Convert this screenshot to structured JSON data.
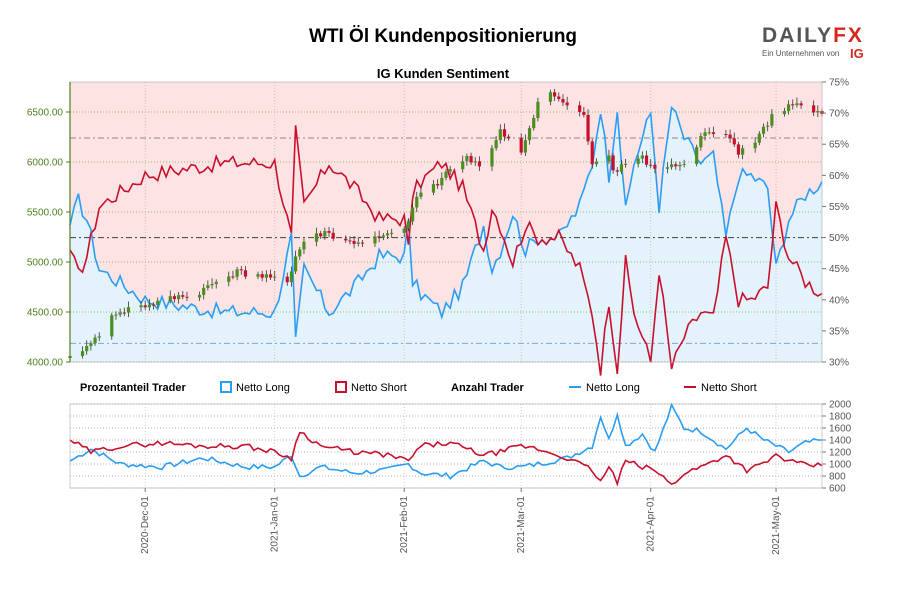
{
  "header": {
    "title": "WTI Öl Kundenpositionierung",
    "subtitle": "IG Kunden Sentiment"
  },
  "logo": {
    "brand_left": "DAILY",
    "brand_right": "FX",
    "tagline": "Ein Unternehmen von",
    "parent": "IG",
    "brand_color": "#d7271c"
  },
  "legend": {
    "percent_heading": "Prozentanteil Trader",
    "percent_long": "Netto Long",
    "percent_short": "Netto Short",
    "count_heading": "Anzahl Trader",
    "count_long": "Netto Long",
    "count_short": "Netto Short"
  },
  "colors": {
    "long": "#2a9df4",
    "short": "#c8102e",
    "candle_up": "#4a8f1f",
    "candle_down": "#c8102e",
    "short_zone": "#fde3e3",
    "long_zone": "#e3f2fb",
    "axis_price": "#4f7f1f"
  },
  "chart_data": [
    {
      "type": "candlestick",
      "title": "IG Kunden Sentiment",
      "x_tick_labels": [
        "2020-Dec-01",
        "2021-Jan-01",
        "2021-Feb-01",
        "2021-Mar-01",
        "2021-Apr-01",
        "2021-May-01"
      ],
      "x_range": [
        "2020-11-13",
        "2021-05-12"
      ],
      "price_axis": {
        "side": "left",
        "ylim": [
          4000,
          6800
        ],
        "ticks": [
          "4000.00",
          "4500.00",
          "5000.00",
          "5500.00",
          "6000.00",
          "6500.00"
        ]
      },
      "percent_axis": {
        "side": "right",
        "ylim": [
          30,
          75
        ],
        "ticks": [
          "30%",
          "35%",
          "40%",
          "45%",
          "50%",
          "55%",
          "60%",
          "65%",
          "70%",
          "75%"
        ]
      },
      "price_close_keypoints": [
        [
          "2020-11-13",
          4060
        ],
        [
          "2020-11-18",
          4180
        ],
        [
          "2020-11-24",
          4500
        ],
        [
          "2020-11-30",
          4550
        ],
        [
          "2020-12-04",
          4600
        ],
        [
          "2020-12-09",
          4650
        ],
        [
          "2020-12-14",
          4700
        ],
        [
          "2020-12-18",
          4800
        ],
        [
          "2020-12-23",
          4900
        ],
        [
          "2020-12-29",
          4850
        ],
        [
          "2021-01-04",
          4800
        ],
        [
          "2021-01-06",
          5050
        ],
        [
          "2021-01-08",
          5200
        ],
        [
          "2021-01-13",
          5300
        ],
        [
          "2021-01-18",
          5200
        ],
        [
          "2021-01-22",
          5200
        ],
        [
          "2021-01-27",
          5250
        ],
        [
          "2021-02-01",
          5300
        ],
        [
          "2021-02-04",
          5650
        ],
        [
          "2021-02-09",
          5800
        ],
        [
          "2021-02-12",
          5950
        ],
        [
          "2021-02-16",
          6050
        ],
        [
          "2021-02-20",
          5950
        ],
        [
          "2021-02-24",
          6300
        ],
        [
          "2021-03-01",
          6100
        ],
        [
          "2021-03-05",
          6600
        ],
        [
          "2021-03-08",
          6700
        ],
        [
          "2021-03-12",
          6550
        ],
        [
          "2021-03-16",
          6450
        ],
        [
          "2021-03-18",
          6000
        ],
        [
          "2021-03-22",
          6100
        ],
        [
          "2021-03-23",
          5900
        ],
        [
          "2021-03-26",
          6000
        ],
        [
          "2021-03-30",
          6050
        ],
        [
          "2021-04-01",
          5950
        ],
        [
          "2021-04-06",
          5950
        ],
        [
          "2021-04-09",
          5950
        ],
        [
          "2021-04-14",
          6300
        ],
        [
          "2021-04-19",
          6300
        ],
        [
          "2021-04-22",
          6100
        ],
        [
          "2021-04-26",
          6200
        ],
        [
          "2021-04-30",
          6450
        ],
        [
          "2021-05-04",
          6550
        ],
        [
          "2021-05-06",
          6600
        ],
        [
          "2021-05-10",
          6500
        ],
        [
          "2021-05-12",
          6480
        ]
      ],
      "series": [
        {
          "name": "Netto Long",
          "unit": "%",
          "keypoints": [
            [
              "2020-11-13",
              52
            ],
            [
              "2020-11-15",
              56
            ],
            [
              "2020-11-17",
              53
            ],
            [
              "2020-11-20",
              45
            ],
            [
              "2020-12-01",
              40
            ],
            [
              "2020-12-10",
              39
            ],
            [
              "2020-12-20",
              38
            ],
            [
              "2021-01-01",
              38
            ],
            [
              "2021-01-05",
              50
            ],
            [
              "2021-01-06",
              33
            ],
            [
              "2021-01-08",
              45
            ],
            [
              "2021-01-14",
              38
            ],
            [
              "2021-01-20",
              42
            ],
            [
              "2021-01-26",
              47
            ],
            [
              "2021-02-01",
              47
            ],
            [
              "2021-02-02",
              52
            ],
            [
              "2021-02-03",
              43
            ],
            [
              "2021-02-05",
              41
            ],
            [
              "2021-02-10",
              38
            ],
            [
              "2021-02-15",
              42
            ],
            [
              "2021-02-20",
              52
            ],
            [
              "2021-02-22",
              45
            ],
            [
              "2021-02-24",
              48
            ],
            [
              "2021-02-27",
              54
            ],
            [
              "2021-03-02",
              48
            ],
            [
              "2021-03-05",
              50
            ],
            [
              "2021-03-10",
              50
            ],
            [
              "2021-03-15",
              55
            ],
            [
              "2021-03-18",
              62
            ],
            [
              "2021-03-20",
              71
            ],
            [
              "2021-03-22",
              60
            ],
            [
              "2021-03-24",
              71
            ],
            [
              "2021-03-26",
              54
            ],
            [
              "2021-03-28",
              62
            ],
            [
              "2021-04-01",
              70
            ],
            [
              "2021-04-03",
              55
            ],
            [
              "2021-04-06",
              71
            ],
            [
              "2021-04-09",
              66
            ],
            [
              "2021-04-13",
              62
            ],
            [
              "2021-04-16",
              63
            ],
            [
              "2021-04-19",
              50
            ],
            [
              "2021-04-22",
              60
            ],
            [
              "2021-04-25",
              60
            ],
            [
              "2021-04-29",
              58
            ],
            [
              "2021-05-01",
              45
            ],
            [
              "2021-05-04",
              53
            ],
            [
              "2021-05-08",
              57
            ],
            [
              "2021-05-12",
              59
            ]
          ]
        },
        {
          "name": "Netto Short",
          "unit": "%",
          "keypoints": [
            [
              "2020-11-13",
              48
            ],
            [
              "2020-11-15",
              44
            ],
            [
              "2020-11-17",
              47
            ],
            [
              "2020-11-20",
              55
            ],
            [
              "2020-12-01",
              60
            ],
            [
              "2020-12-10",
              61
            ],
            [
              "2020-12-20",
              62
            ],
            [
              "2021-01-01",
              62
            ],
            [
              "2021-01-05",
              50
            ],
            [
              "2021-01-06",
              67
            ],
            [
              "2021-01-08",
              55
            ],
            [
              "2021-01-14",
              62
            ],
            [
              "2021-01-20",
              58
            ],
            [
              "2021-01-26",
              53
            ],
            [
              "2021-02-01",
              53
            ],
            [
              "2021-02-02",
              48
            ],
            [
              "2021-02-03",
              57
            ],
            [
              "2021-02-05",
              59
            ],
            [
              "2021-02-10",
              62
            ],
            [
              "2021-02-15",
              58
            ],
            [
              "2021-02-20",
              48
            ],
            [
              "2021-02-22",
              55
            ],
            [
              "2021-02-24",
              52
            ],
            [
              "2021-02-27",
              46
            ],
            [
              "2021-03-02",
              52
            ],
            [
              "2021-03-05",
              50
            ],
            [
              "2021-03-10",
              50
            ],
            [
              "2021-03-15",
              45
            ],
            [
              "2021-03-18",
              38
            ],
            [
              "2021-03-20",
              29
            ],
            [
              "2021-03-22",
              40
            ],
            [
              "2021-03-24",
              29
            ],
            [
              "2021-03-26",
              46
            ],
            [
              "2021-03-28",
              38
            ],
            [
              "2021-04-01",
              30
            ],
            [
              "2021-04-03",
              45
            ],
            [
              "2021-04-06",
              29
            ],
            [
              "2021-04-09",
              34
            ],
            [
              "2021-04-13",
              38
            ],
            [
              "2021-04-16",
              37
            ],
            [
              "2021-04-19",
              50
            ],
            [
              "2021-04-22",
              40
            ],
            [
              "2021-04-25",
              40
            ],
            [
              "2021-04-29",
              42
            ],
            [
              "2021-05-01",
              55
            ],
            [
              "2021-05-04",
              47
            ],
            [
              "2021-05-08",
              43
            ],
            [
              "2021-05-12",
              41
            ]
          ]
        }
      ]
    },
    {
      "type": "line",
      "title": "Anzahl Trader",
      "x_range": [
        "2020-11-13",
        "2021-05-12"
      ],
      "count_axis": {
        "side": "right",
        "ylim": [
          600,
          2000
        ],
        "ticks": [
          "600",
          "800",
          "1000",
          "1200",
          "1400",
          "1600",
          "1800",
          "2000"
        ]
      },
      "series": [
        {
          "name": "Netto Long",
          "keypoints": [
            [
              "2020-11-13",
              1050
            ],
            [
              "2020-11-18",
              1250
            ],
            [
              "2020-11-25",
              1000
            ],
            [
              "2020-12-05",
              950
            ],
            [
              "2020-12-15",
              1100
            ],
            [
              "2020-12-25",
              950
            ],
            [
              "2021-01-01",
              950
            ],
            [
              "2021-01-05",
              1150
            ],
            [
              "2021-01-07",
              800
            ],
            [
              "2021-01-12",
              950
            ],
            [
              "2021-01-20",
              850
            ],
            [
              "2021-01-28",
              900
            ],
            [
              "2021-02-02",
              1000
            ],
            [
              "2021-02-05",
              850
            ],
            [
              "2021-02-12",
              800
            ],
            [
              "2021-02-20",
              1050
            ],
            [
              "2021-02-24",
              950
            ],
            [
              "2021-03-01",
              950
            ],
            [
              "2021-03-05",
              1000
            ],
            [
              "2021-03-12",
              1100
            ],
            [
              "2021-03-18",
              1300
            ],
            [
              "2021-03-20",
              1800
            ],
            [
              "2021-03-22",
              1400
            ],
            [
              "2021-03-24",
              1850
            ],
            [
              "2021-03-26",
              1300
            ],
            [
              "2021-03-30",
              1500
            ],
            [
              "2021-04-02",
              1200
            ],
            [
              "2021-04-06",
              1950
            ],
            [
              "2021-04-09",
              1600
            ],
            [
              "2021-04-13",
              1550
            ],
            [
              "2021-04-19",
              1250
            ],
            [
              "2021-04-24",
              1600
            ],
            [
              "2021-04-28",
              1400
            ],
            [
              "2021-05-01",
              1300
            ],
            [
              "2021-05-04",
              1200
            ],
            [
              "2021-05-08",
              1350
            ],
            [
              "2021-05-12",
              1400
            ]
          ]
        },
        {
          "name": "Netto Short",
          "keypoints": [
            [
              "2020-11-13",
              1400
            ],
            [
              "2020-11-18",
              1200
            ],
            [
              "2020-11-25",
              1300
            ],
            [
              "2020-12-05",
              1350
            ],
            [
              "2020-12-15",
              1300
            ],
            [
              "2020-12-25",
              1300
            ],
            [
              "2021-01-01",
              1200
            ],
            [
              "2021-01-05",
              1100
            ],
            [
              "2021-01-07",
              1550
            ],
            [
              "2021-01-12",
              1300
            ],
            [
              "2021-01-20",
              1200
            ],
            [
              "2021-01-28",
              1150
            ],
            [
              "2021-02-02",
              1050
            ],
            [
              "2021-02-05",
              1300
            ],
            [
              "2021-02-12",
              1350
            ],
            [
              "2021-02-20",
              1150
            ],
            [
              "2021-02-24",
              1200
            ],
            [
              "2021-03-01",
              1300
            ],
            [
              "2021-03-05",
              1250
            ],
            [
              "2021-03-12",
              1100
            ],
            [
              "2021-03-18",
              900
            ],
            [
              "2021-03-20",
              700
            ],
            [
              "2021-03-22",
              950
            ],
            [
              "2021-03-24",
              700
            ],
            [
              "2021-03-26",
              1050
            ],
            [
              "2021-03-30",
              950
            ],
            [
              "2021-04-02",
              900
            ],
            [
              "2021-04-06",
              650
            ],
            [
              "2021-04-09",
              850
            ],
            [
              "2021-04-13",
              950
            ],
            [
              "2021-04-19",
              1150
            ],
            [
              "2021-04-24",
              900
            ],
            [
              "2021-04-28",
              1000
            ],
            [
              "2021-05-01",
              1150
            ],
            [
              "2021-05-04",
              1050
            ],
            [
              "2021-05-08",
              980
            ],
            [
              "2021-05-12",
              970
            ]
          ]
        }
      ]
    }
  ]
}
